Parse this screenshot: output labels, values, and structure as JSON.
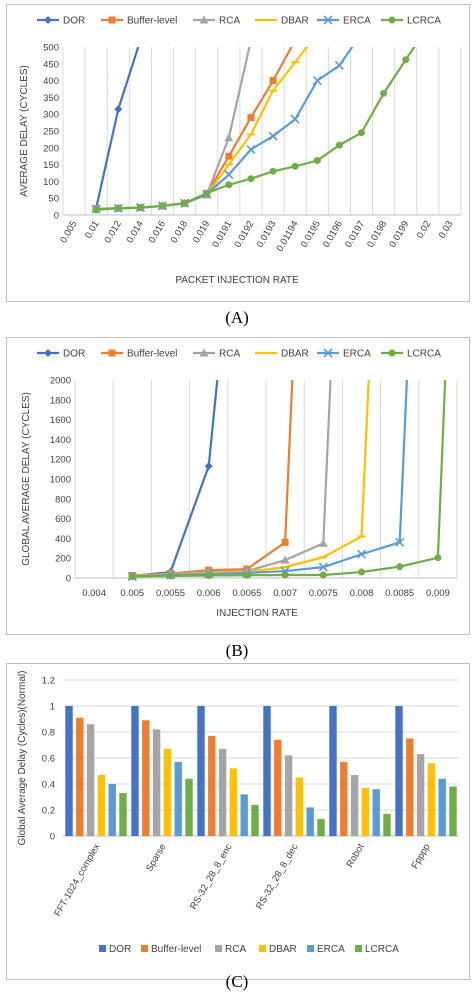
{
  "captions": {
    "a": "(A)",
    "b": "(B)",
    "c": "(C)"
  },
  "colors": {
    "DOR": "#4472c4",
    "Buffer-level": "#ed7d31",
    "RCA": "#a5a5a5",
    "DBAR": "#ffc000",
    "ERCA": "#5b9bd5",
    "LCRCA": "#70ad47"
  },
  "chart_data": [
    {
      "type": "line",
      "xlabel": "PACKET INJECTION RATE",
      "ylabel": "AVERAGE DELAY (CYCLES)",
      "ylim": [
        0,
        500
      ],
      "yticks": [
        0,
        50,
        100,
        150,
        200,
        250,
        300,
        350,
        400,
        450,
        500
      ],
      "categories": [
        "0.005",
        "0.01",
        "0.012",
        "0.014",
        "0.016",
        "0.018",
        "0.019",
        "0.0191",
        "0.0192",
        "0.0193",
        "0.01194",
        "0.0195",
        "0.0196",
        "0.0197",
        "0.0198",
        "0.0199",
        "0.02",
        "0.03"
      ],
      "legend_position": "top",
      "grid": "vertical",
      "series": [
        {
          "name": "DOR",
          "marker": "diamond",
          "values": [
            null,
            20,
            315,
            520,
            null,
            null,
            null,
            null,
            null,
            null,
            null,
            null,
            null,
            null,
            null,
            null,
            null,
            null
          ]
        },
        {
          "name": "Buffer-level",
          "marker": "square",
          "values": [
            null,
            18,
            20,
            22,
            27,
            35,
            62,
            175,
            290,
            400,
            520,
            null,
            null,
            null,
            null,
            null,
            null,
            null
          ]
        },
        {
          "name": "RCA",
          "marker": "triangle",
          "values": [
            null,
            18,
            20,
            22,
            27,
            35,
            60,
            230,
            520,
            null,
            null,
            null,
            null,
            null,
            null,
            null,
            null,
            null
          ]
        },
        {
          "name": "DBAR",
          "marker": "dash",
          "values": [
            null,
            18,
            20,
            22,
            27,
            35,
            60,
            150,
            240,
            370,
            455,
            540,
            null,
            null,
            null,
            null,
            null,
            null
          ]
        },
        {
          "name": "ERCA",
          "marker": "x",
          "values": [
            null,
            18,
            20,
            22,
            27,
            35,
            62,
            120,
            195,
            235,
            285,
            400,
            445,
            540,
            null,
            null,
            null,
            null
          ]
        },
        {
          "name": "LCRCA",
          "marker": "circle",
          "values": [
            null,
            15,
            20,
            22,
            27,
            35,
            65,
            90,
            108,
            130,
            145,
            162,
            208,
            245,
            362,
            462,
            560,
            null
          ]
        }
      ]
    },
    {
      "type": "line",
      "xlabel": "INJECTION RATE",
      "ylabel": "GLOBAL AVERAGE DELAY (CYCLES)",
      "ylim": [
        0,
        2000
      ],
      "yticks": [
        0,
        200,
        400,
        600,
        800,
        1000,
        1200,
        1400,
        1600,
        1800,
        2000
      ],
      "categories": [
        "0.004",
        "0.005",
        "0.0055",
        "0.006",
        "0.0065",
        "0.007",
        "0.0075",
        "0.008",
        "0.0085",
        "0.009"
      ],
      "legend_position": "top",
      "grid": "vertical",
      "series": [
        {
          "name": "DOR",
          "marker": "diamond",
          "x": [
            1,
            2,
            3,
            3.25
          ],
          "values": [
            20,
            60,
            1130,
            2100
          ]
        },
        {
          "name": "Buffer-level",
          "marker": "square",
          "x": [
            1,
            2,
            3,
            4,
            5,
            5.2
          ],
          "values": [
            25,
            45,
            80,
            90,
            360,
            2100
          ]
        },
        {
          "name": "RCA",
          "marker": "triangle",
          "x": [
            1,
            2,
            3,
            4,
            5,
            6,
            6.2
          ],
          "values": [
            20,
            40,
            60,
            70,
            180,
            350,
            2100
          ]
        },
        {
          "name": "DBAR",
          "marker": "dash",
          "x": [
            1,
            2,
            3,
            4,
            5,
            6,
            7,
            7.2
          ],
          "values": [
            20,
            35,
            50,
            60,
            110,
            210,
            420,
            2100
          ]
        },
        {
          "name": "ERCA",
          "marker": "x",
          "x": [
            1,
            2,
            3,
            4,
            5,
            6,
            7,
            8,
            8.2
          ],
          "values": [
            15,
            30,
            40,
            50,
            70,
            110,
            240,
            360,
            2100
          ]
        },
        {
          "name": "LCRCA",
          "marker": "circle",
          "x": [
            1,
            2,
            3,
            4,
            5,
            6,
            7,
            8,
            9,
            9.2
          ],
          "values": [
            15,
            20,
            25,
            28,
            30,
            30,
            60,
            115,
            205,
            2100
          ]
        }
      ]
    },
    {
      "type": "bar",
      "ylabel": "Global Average Delay (Cycles)(Normal)",
      "ylim": [
        0,
        1.2
      ],
      "yticks": [
        0,
        0.2,
        0.4,
        0.6,
        0.8,
        1,
        1.2
      ],
      "ytick_labels": [
        "0",
        "0.2",
        "0.4",
        "0.6",
        "0.8",
        "1",
        "1.2"
      ],
      "categories": [
        "FFT-1024_complex",
        "Sparse",
        "RS-32_28_8_enc",
        "RS-32_28_8_dec",
        "Robot",
        "Fpppp"
      ],
      "legend_position": "bottom",
      "grid": "horizontal",
      "series": [
        {
          "name": "DOR",
          "values": [
            1,
            1,
            1,
            1,
            1,
            1
          ]
        },
        {
          "name": "Buffer-level",
          "values": [
            0.91,
            0.89,
            0.77,
            0.74,
            0.57,
            0.75
          ]
        },
        {
          "name": "RCA",
          "values": [
            0.86,
            0.82,
            0.67,
            0.62,
            0.47,
            0.63
          ]
        },
        {
          "name": "DBAR",
          "values": [
            0.47,
            0.67,
            0.52,
            0.45,
            0.37,
            0.56
          ]
        },
        {
          "name": "ERCA",
          "values": [
            0.4,
            0.57,
            0.32,
            0.22,
            0.36,
            0.44
          ]
        },
        {
          "name": "LCRCA",
          "values": [
            0.33,
            0.44,
            0.24,
            0.13,
            0.17,
            0.38
          ]
        }
      ]
    }
  ]
}
